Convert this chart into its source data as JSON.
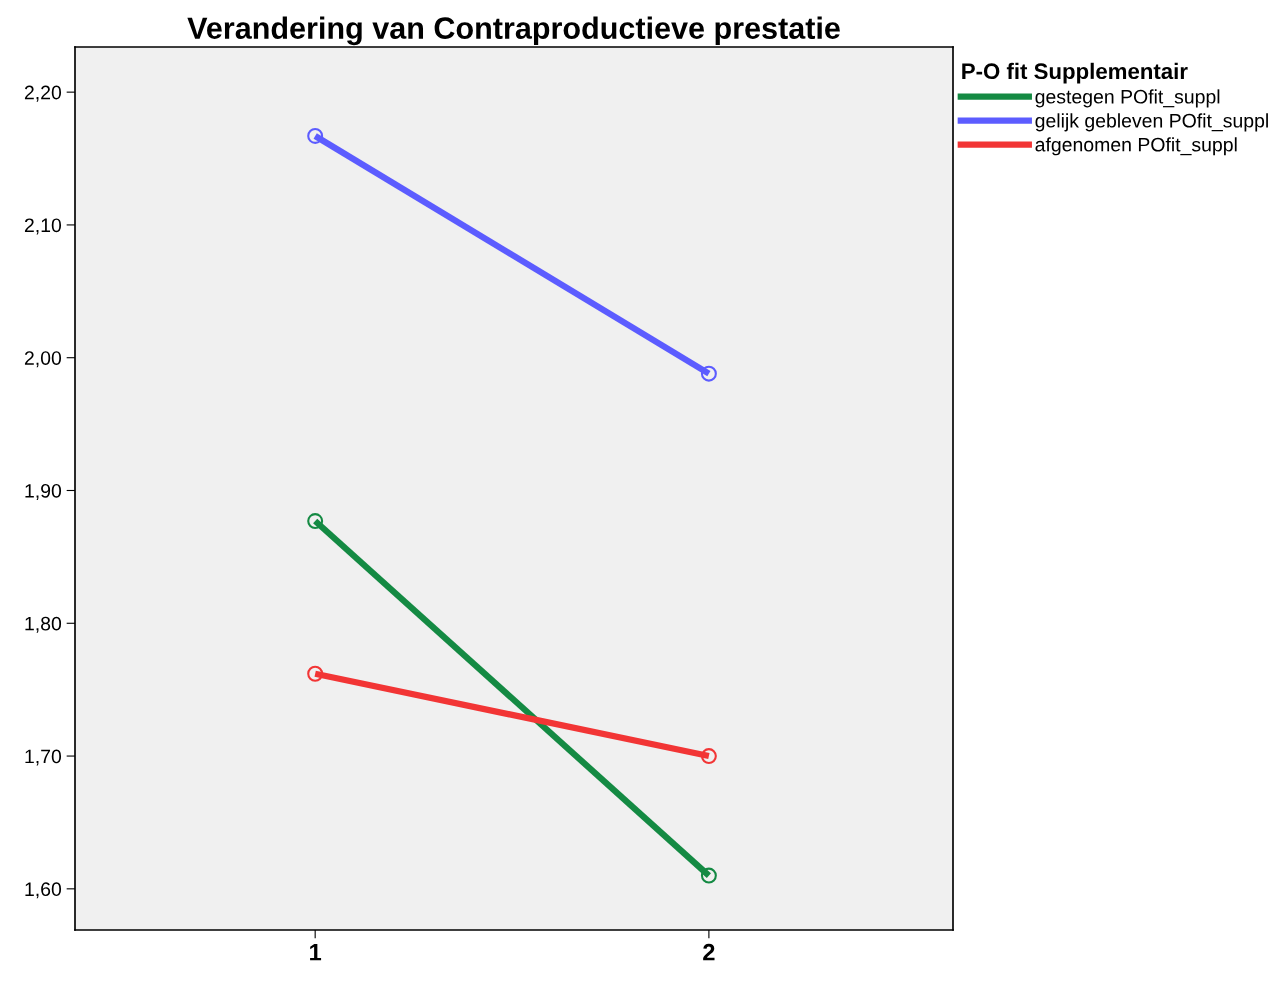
{
  "chart_data": {
    "type": "line",
    "title": "Verandering van Contraproductieve prestatie",
    "categories": [
      "1",
      "2"
    ],
    "legend_title": "P-O fit Supplementair",
    "series": [
      {
        "name": "gestegen POfit_suppl",
        "color": "#148a43",
        "values": [
          1.877,
          1.61
        ]
      },
      {
        "name": "gelijk gebleven POfit_suppl",
        "color": "#5c5cff",
        "values": [
          2.167,
          1.988
        ]
      },
      {
        "name": "afgenomen POfit_suppl",
        "color": "#f23535",
        "values": [
          1.762,
          1.7
        ]
      }
    ],
    "ylim": [
      1.569,
      2.234
    ],
    "yticks": [
      {
        "value": 1.6,
        "label": "1,60"
      },
      {
        "value": 1.7,
        "label": "1,70"
      },
      {
        "value": 1.8,
        "label": "1,80"
      },
      {
        "value": 1.9,
        "label": "1,90"
      },
      {
        "value": 2.0,
        "label": "2,00"
      },
      {
        "value": 2.1,
        "label": "2,10"
      },
      {
        "value": 2.2,
        "label": "2,20"
      }
    ],
    "marker": "circle",
    "line_style": "solid",
    "legend": "top right",
    "grid": false
  }
}
